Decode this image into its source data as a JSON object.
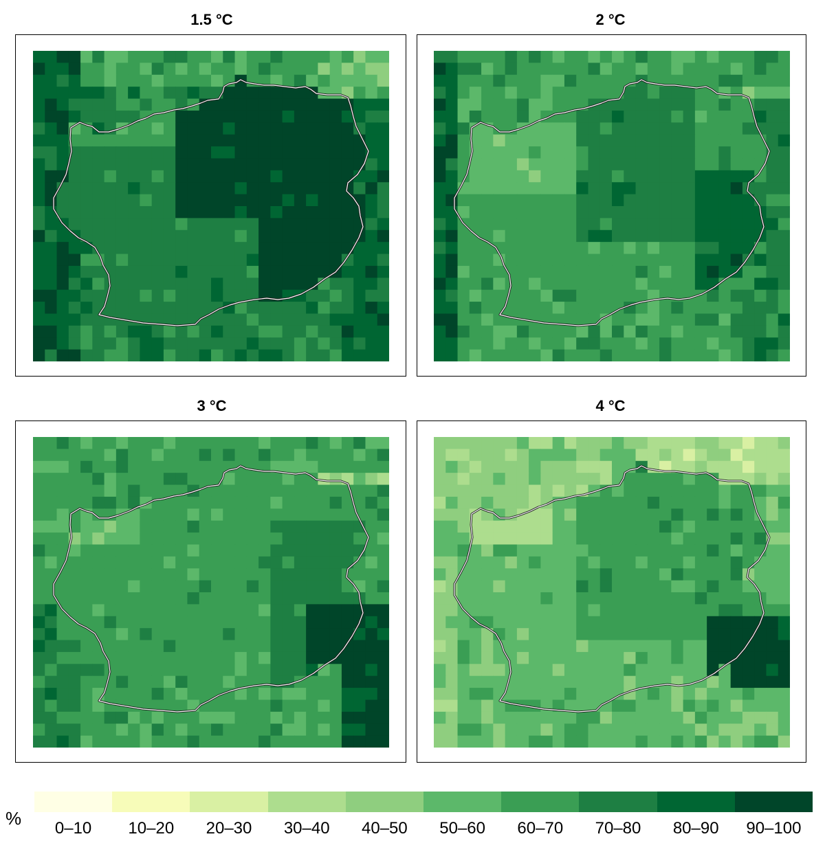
{
  "panels": [
    {
      "title": "1.5 °C",
      "scheme": "high"
    },
    {
      "title": "2 °C",
      "scheme": "midhigh"
    },
    {
      "title": "3 °C",
      "scheme": "mid"
    },
    {
      "title": "4 °C",
      "scheme": "low"
    }
  ],
  "legend": {
    "unit": "%",
    "classes": [
      {
        "label": "0–10",
        "color": "#ffffe5"
      },
      {
        "label": "10–20",
        "color": "#f7fcb9"
      },
      {
        "label": "20–30",
        "color": "#d9f0a3"
      },
      {
        "label": "30–40",
        "color": "#addd8e"
      },
      {
        "label": "40–50",
        "color": "#8fce7f"
      },
      {
        "label": "50–60",
        "color": "#5cb86a"
      },
      {
        "label": "60–70",
        "color": "#3a9e54"
      },
      {
        "label": "70–80",
        "color": "#1e7f43"
      },
      {
        "label": "80–90",
        "color": "#006633"
      },
      {
        "label": "90–100",
        "color": "#004529"
      }
    ]
  }
}
